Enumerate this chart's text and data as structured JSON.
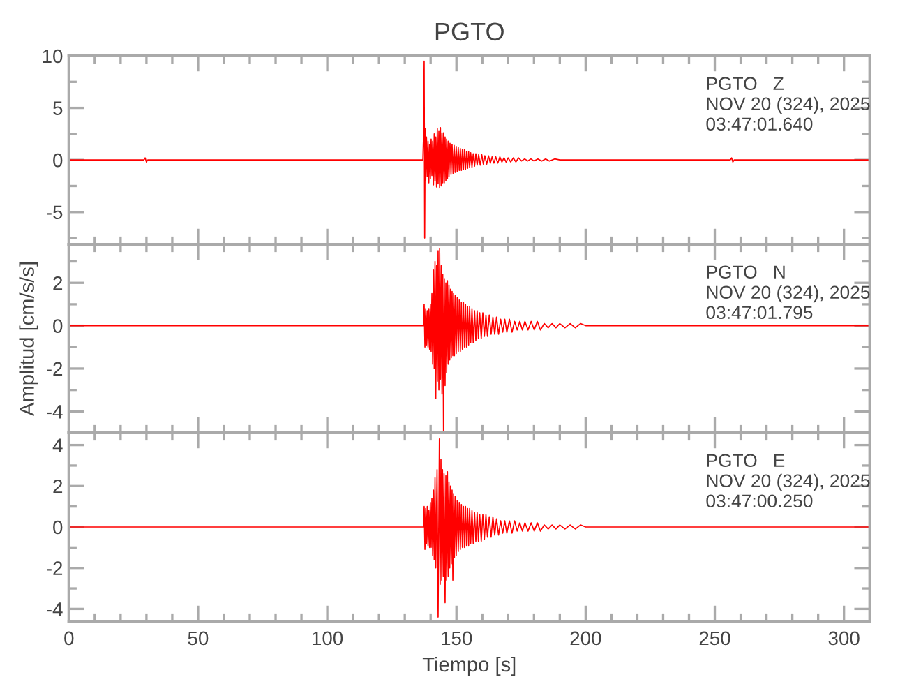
{
  "chart_data": [
    {
      "type": "line",
      "title": "PGTO",
      "annotations": [
        "PGTO   Z",
        "NOV 20 (324), 2025",
        "03:47:01.640"
      ],
      "color": "#ff0000",
      "x": [
        0,
        29.0,
        29.5,
        30,
        30.5,
        60,
        100,
        137.0,
        137.3,
        137.5,
        137.7,
        137.9,
        138.1,
        138.4,
        138.7,
        139.0,
        139.3,
        139.6,
        139.9,
        140.2,
        140.5,
        140.8,
        141.1,
        141.4,
        141.7,
        142.0,
        142.3,
        142.6,
        142.9,
        143.2,
        143.5,
        143.8,
        144.1,
        144.4,
        144.7,
        145.0,
        145.3,
        145.6,
        145.9,
        146.2,
        146.5,
        146.8,
        147.1,
        147.5,
        147.9,
        148.3,
        148.7,
        149.1,
        149.5,
        149.9,
        150.3,
        150.7,
        151.1,
        151.5,
        151.9,
        152.3,
        152.7,
        153.1,
        153.5,
        153.9,
        154.3,
        154.7,
        155.1,
        155.5,
        156.0,
        156.5,
        157.0,
        157.5,
        158.0,
        158.6,
        159.2,
        159.8,
        160.4,
        161.0,
        161.7,
        162.4,
        163.1,
        163.8,
        164.5,
        165.2,
        166.0,
        166.8,
        167.6,
        168.4,
        169.2,
        170.0,
        171.0,
        172.0,
        173.0,
        174.0,
        175.2,
        176.4,
        177.6,
        178.8,
        180.0,
        181.5,
        183.0,
        184.5,
        186.0,
        188.0,
        190.0,
        256.0,
        256.5,
        257.0,
        257.5,
        310
      ],
      "values": [
        0,
        0,
        0.2,
        -0.2,
        0,
        0,
        0,
        0,
        2.8,
        9.5,
        -7.5,
        3.0,
        -2.0,
        2.2,
        -1.6,
        1.8,
        -2.2,
        1.5,
        -1.8,
        2.0,
        -1.5,
        1.8,
        -2.4,
        2.5,
        -2.0,
        2.2,
        -2.6,
        3.0,
        -2.3,
        2.8,
        -2.7,
        3.1,
        -2.5,
        2.6,
        -2.2,
        2.6,
        -2.2,
        2.2,
        -2.0,
        2.0,
        -1.8,
        1.8,
        -1.6,
        1.6,
        -1.4,
        1.5,
        -1.3,
        1.4,
        -1.2,
        1.3,
        -1.1,
        1.2,
        -1.0,
        1.1,
        -1.0,
        1.0,
        -0.9,
        1.0,
        -0.9,
        0.8,
        -0.8,
        0.8,
        -0.7,
        0.7,
        -0.7,
        0.6,
        -0.6,
        0.6,
        -0.5,
        0.5,
        -0.5,
        0.5,
        -0.4,
        0.4,
        -0.4,
        0.4,
        -0.3,
        0.3,
        -0.3,
        0.3,
        -0.3,
        0.3,
        -0.2,
        0.2,
        -0.2,
        0.2,
        -0.2,
        0.2,
        -0.2,
        0.2,
        -0.1,
        0.1,
        -0.1,
        0.1,
        -0.1,
        0.1,
        -0.1,
        0.1,
        -0.1,
        0.1,
        0,
        0,
        0.2,
        -0.2,
        0,
        0
      ],
      "xlim": [
        0,
        310
      ],
      "ylim": [
        -8.1,
        10
      ],
      "xticks": [
        0,
        {
          "value": 10,
          "label": null
        },
        {
          "value": 20,
          "label": null
        },
        {
          "value": 30,
          "label": null
        },
        {
          "value": 40,
          "label": null
        },
        50,
        {
          "value": 60,
          "label": null
        },
        {
          "value": 70,
          "label": null
        },
        {
          "value": 80,
          "label": null
        },
        {
          "value": 90,
          "label": null
        },
        100,
        {
          "value": 110,
          "label": null
        },
        {
          "value": 120,
          "label": null
        },
        {
          "value": 130,
          "label": null
        },
        {
          "value": 140,
          "label": null
        },
        150,
        {
          "value": 160,
          "label": null
        },
        {
          "value": 170,
          "label": null
        },
        {
          "value": 180,
          "label": null
        },
        {
          "value": 190,
          "label": null
        },
        200,
        {
          "value": 210,
          "label": null
        },
        {
          "value": 220,
          "label": null
        },
        {
          "value": 230,
          "label": null
        },
        {
          "value": 240,
          "label": null
        },
        250,
        {
          "value": 260,
          "label": null
        },
        {
          "value": 270,
          "label": null
        },
        {
          "value": 280,
          "label": null
        },
        {
          "value": 290,
          "label": null
        },
        300
      ],
      "yticks": [
        {
          "value": -7.5,
          "label": null
        },
        -5,
        {
          "value": -2.5,
          "label": null
        },
        0,
        {
          "value": 2.5,
          "label": null
        },
        5,
        {
          "value": 7.5,
          "label": null
        },
        10
      ],
      "tick_labels": "y"
    },
    {
      "type": "line",
      "ylabel": "Amplitud [cm/s/s]",
      "annotations": [
        "PGTO   N",
        "NOV 20 (324), 2025",
        "03:47:01.795"
      ],
      "color": "#ff0000",
      "x": [
        0,
        60,
        100,
        137.3,
        137.5,
        137.8,
        138.1,
        138.4,
        138.7,
        139.0,
        139.3,
        139.6,
        139.9,
        140.2,
        140.5,
        140.8,
        141.1,
        141.4,
        141.7,
        142.0,
        142.3,
        142.6,
        142.9,
        143.2,
        143.5,
        143.8,
        144.1,
        144.4,
        144.7,
        145.0,
        145.3,
        145.6,
        145.9,
        146.2,
        146.5,
        146.8,
        147.1,
        147.4,
        147.7,
        148.0,
        148.3,
        148.6,
        148.9,
        149.2,
        149.5,
        149.9,
        150.3,
        150.7,
        151.1,
        151.5,
        151.9,
        152.3,
        152.7,
        153.1,
        153.5,
        153.9,
        154.3,
        154.7,
        155.1,
        155.5,
        156.0,
        156.5,
        157.0,
        157.5,
        158.0,
        158.5,
        159.0,
        159.6,
        160.2,
        160.8,
        161.4,
        162.0,
        162.7,
        163.4,
        164.1,
        164.8,
        165.5,
        166.3,
        167.1,
        167.9,
        168.7,
        169.5,
        170.5,
        171.5,
        172.5,
        173.5,
        174.5,
        175.5,
        176.5,
        177.7,
        178.9,
        180.1,
        181.3,
        182.5,
        184.0,
        185.5,
        187.0,
        188.5,
        190.0,
        192.0,
        194.0,
        196.0,
        198.0,
        200.0,
        310
      ],
      "values": [
        0,
        0,
        0,
        0,
        1.0,
        -1.0,
        0.8,
        -0.9,
        0.7,
        -1.0,
        0.8,
        -1.1,
        1.0,
        -1.2,
        1.5,
        -1.8,
        2.6,
        -2.0,
        3.0,
        -3.4,
        2.8,
        -2.6,
        3.5,
        -3.0,
        3.6,
        -2.5,
        2.8,
        -3.2,
        2.4,
        -4.9,
        2.2,
        -2.8,
        2.0,
        -2.2,
        2.1,
        -1.8,
        1.9,
        -1.6,
        1.7,
        -1.5,
        1.6,
        -1.4,
        1.5,
        -1.4,
        1.4,
        -1.3,
        1.3,
        -1.2,
        1.2,
        -1.2,
        1.1,
        -1.1,
        1.1,
        -1.0,
        1.0,
        -1.0,
        0.9,
        -0.9,
        0.9,
        -0.8,
        0.8,
        -0.8,
        0.7,
        -0.7,
        0.7,
        -0.6,
        0.6,
        -0.6,
        0.6,
        -0.5,
        0.5,
        -0.5,
        0.5,
        -0.4,
        0.4,
        -0.4,
        0.4,
        -0.4,
        0.3,
        -0.3,
        0.3,
        -0.3,
        0.3,
        -0.3,
        0.2,
        -0.2,
        0.2,
        -0.2,
        0.2,
        -0.2,
        0.2,
        -0.2,
        0.2,
        -0.2,
        0.1,
        -0.1,
        0.1,
        -0.1,
        0.1,
        -0.1,
        0.1,
        -0.1,
        0.1,
        0,
        0
      ],
      "xlim": [
        0,
        310
      ],
      "ylim": [
        -5.0,
        3.8
      ],
      "xticks": [
        0,
        {
          "value": 10,
          "label": null
        },
        {
          "value": 20,
          "label": null
        },
        {
          "value": 30,
          "label": null
        },
        {
          "value": 40,
          "label": null
        },
        50,
        {
          "value": 60,
          "label": null
        },
        {
          "value": 70,
          "label": null
        },
        {
          "value": 80,
          "label": null
        },
        {
          "value": 90,
          "label": null
        },
        100,
        {
          "value": 110,
          "label": null
        },
        {
          "value": 120,
          "label": null
        },
        {
          "value": 130,
          "label": null
        },
        {
          "value": 140,
          "label": null
        },
        150,
        {
          "value": 160,
          "label": null
        },
        {
          "value": 170,
          "label": null
        },
        {
          "value": 180,
          "label": null
        },
        {
          "value": 190,
          "label": null
        },
        200,
        {
          "value": 210,
          "label": null
        },
        {
          "value": 220,
          "label": null
        },
        {
          "value": 230,
          "label": null
        },
        {
          "value": 240,
          "label": null
        },
        250,
        {
          "value": 260,
          "label": null
        },
        {
          "value": 270,
          "label": null
        },
        {
          "value": 280,
          "label": null
        },
        {
          "value": 290,
          "label": null
        },
        300
      ],
      "yticks": [
        -4,
        {
          "value": -3,
          "label": null
        },
        -2,
        {
          "value": -1,
          "label": null
        },
        0,
        {
          "value": 1,
          "label": null
        },
        2,
        {
          "value": 3,
          "label": null
        }
      ],
      "tick_labels": "y"
    },
    {
      "type": "line",
      "xlabel": "Tiempo [s]",
      "annotations": [
        "PGTO   E",
        "NOV 20 (324), 2025",
        "03:47:00.250"
      ],
      "color": "#ff0000",
      "x": [
        0,
        60,
        100,
        137.3,
        137.5,
        137.8,
        138.1,
        138.4,
        138.7,
        139.0,
        139.3,
        139.6,
        139.9,
        140.2,
        140.5,
        140.8,
        141.1,
        141.4,
        141.7,
        142.0,
        142.5,
        142.9,
        143.4,
        143.7,
        144.0,
        144.3,
        144.6,
        144.9,
        145.2,
        145.6,
        145.9,
        146.2,
        146.5,
        146.8,
        147.1,
        147.4,
        147.7,
        148.0,
        148.3,
        148.6,
        148.9,
        149.2,
        149.5,
        149.9,
        150.3,
        150.7,
        151.1,
        151.5,
        151.9,
        152.3,
        152.7,
        153.1,
        153.5,
        153.9,
        154.3,
        154.7,
        155.1,
        155.5,
        156.0,
        156.5,
        157.0,
        157.5,
        158.0,
        158.5,
        159.0,
        159.6,
        160.2,
        160.8,
        161.4,
        162.0,
        162.7,
        163.4,
        164.1,
        164.8,
        165.5,
        166.3,
        167.1,
        167.9,
        168.7,
        169.5,
        170.5,
        171.5,
        172.5,
        173.5,
        174.5,
        175.5,
        176.5,
        177.7,
        178.9,
        180.1,
        181.3,
        182.5,
        184.0,
        185.5,
        187.0,
        188.5,
        190.0,
        192.0,
        194.0,
        196.0,
        198.0,
        200.0,
        310
      ],
      "values": [
        0,
        0,
        0,
        0,
        1.0,
        -1.1,
        0.9,
        -0.8,
        1.0,
        -0.9,
        0.8,
        -1.0,
        1.2,
        -1.0,
        1.4,
        -1.4,
        1.8,
        -1.6,
        2.4,
        -2.0,
        2.8,
        -4.4,
        4.3,
        -2.8,
        3.3,
        -2.6,
        2.8,
        -2.4,
        2.6,
        -3.7,
        2.5,
        -2.6,
        2.7,
        -2.4,
        2.2,
        -2.0,
        2.0,
        -1.8,
        1.8,
        -2.6,
        1.6,
        -1.5,
        1.5,
        -1.4,
        1.3,
        -1.2,
        1.2,
        -1.1,
        1.1,
        -1.0,
        1.0,
        -1.0,
        1.0,
        -0.9,
        0.9,
        -0.9,
        0.9,
        -0.8,
        0.8,
        -0.8,
        0.7,
        -0.7,
        0.7,
        -0.7,
        0.6,
        -0.7,
        0.6,
        -0.6,
        0.6,
        -0.5,
        0.5,
        -0.5,
        0.5,
        -0.4,
        0.4,
        -0.4,
        0.3,
        -0.3,
        0.3,
        -0.3,
        0.3,
        -0.3,
        0.3,
        -0.2,
        0.2,
        -0.2,
        0.2,
        -0.2,
        0.2,
        -0.2,
        0.2,
        -0.2,
        0.1,
        -0.1,
        0.1,
        -0.1,
        0.1,
        -0.1,
        0.1,
        -0.1,
        0.1,
        0,
        0
      ],
      "xlim": [
        0,
        310
      ],
      "ylim": [
        -4.6,
        4.6
      ],
      "xticks": [
        0,
        {
          "value": 10,
          "label": null
        },
        {
          "value": 20,
          "label": null
        },
        {
          "value": 30,
          "label": null
        },
        {
          "value": 40,
          "label": null
        },
        50,
        {
          "value": 60,
          "label": null
        },
        {
          "value": 70,
          "label": null
        },
        {
          "value": 80,
          "label": null
        },
        {
          "value": 90,
          "label": null
        },
        100,
        {
          "value": 110,
          "label": null
        },
        {
          "value": 120,
          "label": null
        },
        {
          "value": 130,
          "label": null
        },
        {
          "value": 140,
          "label": null
        },
        150,
        {
          "value": 160,
          "label": null
        },
        {
          "value": 170,
          "label": null
        },
        {
          "value": 180,
          "label": null
        },
        {
          "value": 190,
          "label": null
        },
        200,
        {
          "value": 210,
          "label": null
        },
        {
          "value": 220,
          "label": null
        },
        {
          "value": 230,
          "label": null
        },
        {
          "value": 240,
          "label": null
        },
        250,
        {
          "value": 260,
          "label": null
        },
        {
          "value": 270,
          "label": null
        },
        {
          "value": 280,
          "label": null
        },
        {
          "value": 290,
          "label": null
        },
        300
      ],
      "yticks": [
        -4,
        {
          "value": -3,
          "label": null
        },
        -2,
        {
          "value": -1,
          "label": null
        },
        0,
        {
          "value": 1,
          "label": null
        },
        2,
        {
          "value": 3,
          "label": null
        },
        4
      ]
    }
  ]
}
